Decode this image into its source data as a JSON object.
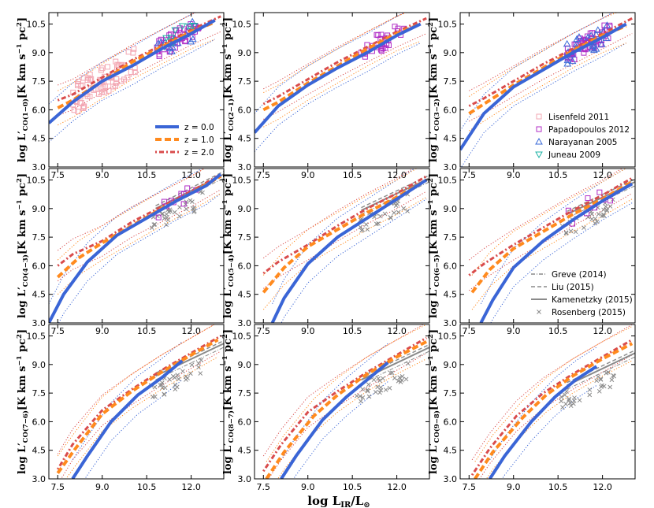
{
  "colors": {
    "z0": "#3a65d6",
    "z1": "#ff8a1e",
    "z2": "#d94c4c",
    "lisenfeld": "#f3a7b3",
    "papadopoulos": "#b02cc6",
    "narayanan": "#3a6ad8",
    "juneau": "#1fb3a6",
    "literature": "#8a8a8a",
    "rosenberg": "#8a8a8a"
  },
  "chart_data": {
    "type": "scatter",
    "xlim": [
      7.2,
      13.1
    ],
    "ylim": [
      3.0,
      11.1
    ],
    "xticks": [
      "7.5",
      "9.0",
      "10.5",
      "12.0"
    ],
    "yticks": [
      "3.0",
      "4.5",
      "6.0",
      "7.5",
      "9.0",
      "10.5"
    ],
    "xlabel": "log  L_IR/L_⊙",
    "xlabel_parts": {
      "base": "log  L",
      "sub1": "IR",
      "sep": "/L",
      "sub2": "⊙"
    },
    "ylabel_parts": {
      "pre": "log L′",
      "sub_prefix": "CO",
      "units": "[K km s",
      "exp": "−1",
      "pc": " pc",
      "exp2": "2",
      "close": "]"
    },
    "legend_z": {
      "placement": "panel 1 lower-right",
      "entries": [
        {
          "label": "z = 0.0",
          "key": "z0"
        },
        {
          "label": "z = 1.0",
          "key": "z1"
        },
        {
          "label": "z = 2.0",
          "key": "z2"
        }
      ]
    },
    "legend_obs": {
      "placement": "panel 3 lower-right",
      "entries": [
        {
          "label": "Lisenfeld 2011",
          "key": "lisenfeld",
          "marker": "square"
        },
        {
          "label": "Papadopoulos 2012",
          "key": "papadopoulos",
          "marker": "square"
        },
        {
          "label": "Narayanan 2005",
          "key": "narayanan",
          "marker": "triangle-up"
        },
        {
          "label": "Juneau 2009",
          "key": "juneau",
          "marker": "triangle-down"
        }
      ]
    },
    "legend_lit": {
      "placement": "panel 6 lower-right",
      "entries": [
        {
          "label": "Greve (2014)",
          "style": "dashdot"
        },
        {
          "label": "Liu (2015)",
          "style": "dashed"
        },
        {
          "label": "Kamenetzky (2015)",
          "style": "solid"
        },
        {
          "label": "Rosenberg (2015)",
          "style": "x"
        }
      ]
    },
    "panels": [
      {
        "transition": "(1−0)",
        "z0": [
          [
            7.2,
            5.3
          ],
          [
            8,
            6.4
          ],
          [
            9,
            7.5
          ],
          [
            10,
            8.3
          ],
          [
            11,
            9.2
          ],
          [
            12,
            10.0
          ],
          [
            12.8,
            10.7
          ]
        ],
        "z1": [
          [
            7.5,
            6.1
          ],
          [
            8,
            6.5
          ],
          [
            9,
            7.5
          ],
          [
            10,
            8.5
          ],
          [
            11,
            9.3
          ],
          [
            12,
            10.1
          ],
          [
            12.8,
            10.6
          ]
        ],
        "z2": [
          [
            7.5,
            6.5
          ],
          [
            8,
            6.8
          ],
          [
            9,
            7.7
          ],
          [
            10,
            8.6
          ],
          [
            11,
            9.4
          ],
          [
            12,
            10.2
          ],
          [
            13,
            10.9
          ]
        ],
        "lit": []
      },
      {
        "transition": "(2−1)",
        "z0": [
          [
            7.2,
            4.8
          ],
          [
            8,
            6.2
          ],
          [
            9,
            7.3
          ],
          [
            10,
            8.2
          ],
          [
            11,
            9.0
          ],
          [
            12,
            9.9
          ],
          [
            12.8,
            10.5
          ]
        ],
        "z1": [
          [
            7.5,
            6.0
          ],
          [
            8,
            6.4
          ],
          [
            9,
            7.4
          ],
          [
            10,
            8.3
          ],
          [
            11,
            9.2
          ],
          [
            12,
            10.0
          ],
          [
            12.8,
            10.5
          ]
        ],
        "z2": [
          [
            7.5,
            6.3
          ],
          [
            8,
            6.7
          ],
          [
            9,
            7.6
          ],
          [
            10,
            8.5
          ],
          [
            11,
            9.3
          ],
          [
            12,
            10.1
          ],
          [
            13,
            10.8
          ]
        ],
        "lit": []
      },
      {
        "transition": "(3−2)",
        "z0": [
          [
            7.2,
            3.9
          ],
          [
            8,
            5.8
          ],
          [
            9,
            7.2
          ],
          [
            10,
            8.1
          ],
          [
            11,
            9.0
          ],
          [
            12,
            9.8
          ],
          [
            12.8,
            10.5
          ]
        ],
        "z1": [
          [
            7.5,
            5.8
          ],
          [
            8,
            6.3
          ],
          [
            9,
            7.3
          ],
          [
            10,
            8.2
          ],
          [
            11,
            9.1
          ],
          [
            12,
            9.9
          ],
          [
            12.8,
            10.4
          ]
        ],
        "z2": [
          [
            7.5,
            6.2
          ],
          [
            8,
            6.6
          ],
          [
            9,
            7.5
          ],
          [
            10,
            8.4
          ],
          [
            11,
            9.2
          ],
          [
            12,
            10.0
          ],
          [
            13,
            10.8
          ]
        ],
        "lit": []
      },
      {
        "transition": "(4−3)",
        "z0": [
          [
            7.2,
            3.0
          ],
          [
            7.7,
            4.5
          ],
          [
            8.5,
            6.2
          ],
          [
            9.5,
            7.6
          ],
          [
            10.5,
            8.5
          ],
          [
            11.5,
            9.4
          ],
          [
            12.5,
            10.2
          ],
          [
            13,
            10.8
          ]
        ],
        "z1": [
          [
            7.5,
            5.4
          ],
          [
            8.2,
            6.4
          ],
          [
            9,
            7.2
          ],
          [
            10,
            8.1
          ],
          [
            11,
            9.0
          ],
          [
            12,
            9.8
          ],
          [
            13,
            10.7
          ]
        ],
        "z2": [
          [
            7.5,
            6.0
          ],
          [
            8,
            6.6
          ],
          [
            9,
            7.3
          ],
          [
            10,
            8.3
          ],
          [
            11,
            9.1
          ],
          [
            12,
            9.9
          ],
          [
            13,
            10.8
          ]
        ],
        "lit": [
          [
            10.8,
            9.0
          ],
          [
            13.1,
            10.8
          ]
        ]
      },
      {
        "transition": "(5−4)",
        "z0": [
          [
            7.8,
            3.0
          ],
          [
            8.2,
            4.3
          ],
          [
            9,
            6.1
          ],
          [
            10,
            7.5
          ],
          [
            11,
            8.5
          ],
          [
            12,
            9.5
          ],
          [
            13,
            10.5
          ]
        ],
        "z1": [
          [
            7.5,
            4.6
          ],
          [
            8.2,
            5.9
          ],
          [
            9,
            7.0
          ],
          [
            10,
            7.9
          ],
          [
            11,
            8.8
          ],
          [
            12,
            9.6
          ],
          [
            13,
            10.5
          ]
        ],
        "z2": [
          [
            7.5,
            5.6
          ],
          [
            8,
            6.2
          ],
          [
            9,
            7.1
          ],
          [
            10,
            8.1
          ],
          [
            11,
            9.0
          ],
          [
            12,
            9.8
          ],
          [
            13,
            10.7
          ]
        ],
        "lit": [
          [
            10.8,
            8.9
          ],
          [
            13.1,
            10.6
          ]
        ]
      },
      {
        "transition": "(6−5)",
        "z0": [
          [
            7.9,
            3.0
          ],
          [
            8.3,
            4.2
          ],
          [
            9,
            5.9
          ],
          [
            10,
            7.3
          ],
          [
            11,
            8.4
          ],
          [
            12,
            9.4
          ],
          [
            13,
            10.3
          ]
        ],
        "z1": [
          [
            7.6,
            4.6
          ],
          [
            8.2,
            5.8
          ],
          [
            9,
            6.9
          ],
          [
            10,
            7.8
          ],
          [
            11,
            8.7
          ],
          [
            12,
            9.5
          ],
          [
            13,
            10.4
          ]
        ],
        "z2": [
          [
            7.5,
            5.5
          ],
          [
            8,
            6.1
          ],
          [
            9,
            7.1
          ],
          [
            10,
            8.0
          ],
          [
            11,
            8.9
          ],
          [
            12,
            9.7
          ],
          [
            13,
            10.6
          ]
        ],
        "lit": [
          [
            10.8,
            8.7
          ],
          [
            13.1,
            10.4
          ]
        ]
      },
      {
        "transition": "(7−6)",
        "z0": [
          [
            8.0,
            3.0
          ],
          [
            8.5,
            4.2
          ],
          [
            9.3,
            6.0
          ],
          [
            10.2,
            7.4
          ],
          [
            11,
            8.3
          ],
          [
            11.7,
            9.2
          ]
        ],
        "z1": [
          [
            7.5,
            3.3
          ],
          [
            8.1,
            4.6
          ],
          [
            9,
            6.4
          ],
          [
            10,
            7.6
          ],
          [
            11,
            8.6
          ],
          [
            12,
            9.5
          ],
          [
            12.9,
            10.3
          ]
        ],
        "z2": [
          [
            7.5,
            3.5
          ],
          [
            8,
            4.8
          ],
          [
            9,
            6.6
          ],
          [
            10,
            7.7
          ],
          [
            11,
            8.7
          ],
          [
            12,
            9.6
          ],
          [
            13,
            10.5
          ]
        ],
        "lit": [
          [
            10.8,
            8.4
          ],
          [
            13.1,
            10.1
          ]
        ]
      },
      {
        "transition": "(8−7)",
        "z0": [
          [
            8.1,
            3.0
          ],
          [
            8.6,
            4.2
          ],
          [
            9.5,
            6.1
          ],
          [
            10.3,
            7.3
          ],
          [
            11,
            8.2
          ],
          [
            11.7,
            9.1
          ]
        ],
        "z1": [
          [
            7.6,
            3.0
          ],
          [
            8.2,
            4.4
          ],
          [
            9.2,
            6.3
          ],
          [
            10,
            7.4
          ],
          [
            11,
            8.5
          ],
          [
            12,
            9.4
          ],
          [
            13,
            10.2
          ]
        ],
        "z2": [
          [
            7.5,
            3.4
          ],
          [
            8.1,
            4.8
          ],
          [
            9,
            6.5
          ],
          [
            10,
            7.6
          ],
          [
            11,
            8.6
          ],
          [
            12,
            9.5
          ],
          [
            13,
            10.4
          ]
        ],
        "lit": [
          [
            10.8,
            8.2
          ],
          [
            13.1,
            9.9
          ]
        ]
      },
      {
        "transition": "(9−8)",
        "z0": [
          [
            8.2,
            3.0
          ],
          [
            8.7,
            4.2
          ],
          [
            9.6,
            6.0
          ],
          [
            10.4,
            7.3
          ],
          [
            11.1,
            8.2
          ],
          [
            11.8,
            8.9
          ]
        ],
        "z1": [
          [
            7.7,
            3.0
          ],
          [
            8.3,
            4.4
          ],
          [
            9.3,
            6.2
          ],
          [
            10.1,
            7.4
          ],
          [
            11,
            8.4
          ],
          [
            12,
            9.3
          ],
          [
            13,
            10.1
          ]
        ],
        "z2": [
          [
            7.6,
            3.2
          ],
          [
            8.2,
            4.6
          ],
          [
            9.1,
            6.3
          ],
          [
            10,
            7.5
          ],
          [
            11,
            8.5
          ],
          [
            12,
            9.4
          ],
          [
            13,
            10.3
          ]
        ],
        "lit": [
          [
            10.8,
            7.9
          ],
          [
            13.1,
            9.6
          ]
        ]
      }
    ]
  }
}
